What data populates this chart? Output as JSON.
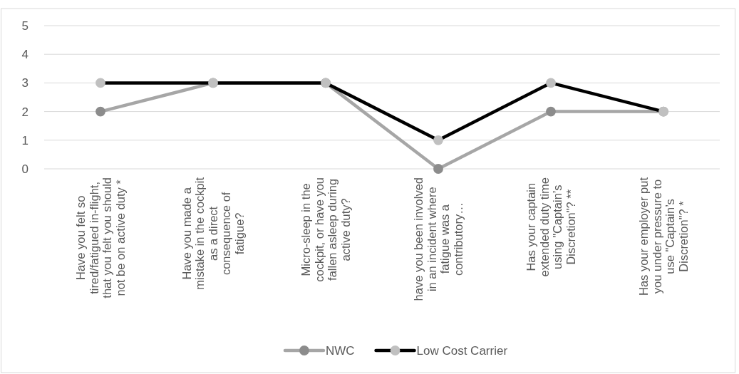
{
  "chart_data": {
    "type": "line",
    "categories": [
      "Have you felt so tired/fatigued in-flight, that you felt you should not be on active duty *",
      "Have you made a mistake in the cockpit as a direct consequence of fatigue?",
      "Micro-sleep in the cockpit, or have you fallen asleep during active duty?",
      "have you been involved in an incident where fatigue was a contributory…",
      "Has your captain extended duty time using \"Captain’s Discretion\"? **",
      "Has your employer put you under pressure to use \"Captain’s Discretion\"? *"
    ],
    "series": [
      {
        "name": "NWC",
        "color": "#a6a6a6",
        "colors": [
          "#8c8c8c",
          "#8c8c8c",
          "#8c8c8c",
          "#8c8c8c",
          "#8c8c8c",
          "#8c8c8c"
        ],
        "values": [
          2,
          3,
          3,
          0,
          2,
          2
        ]
      },
      {
        "name": "Low Cost Carrier",
        "color": "#000000",
        "colors": [
          "#c0c0c0",
          "#c0c0c0",
          "#c0c0c0",
          "#c0c0c0",
          "#c0c0c0",
          "#c0c0c0"
        ],
        "values": [
          3,
          3,
          3,
          1,
          3,
          2
        ]
      }
    ],
    "ylim": [
      0,
      5
    ],
    "yticks": [
      0,
      1,
      2,
      3,
      4,
      5
    ],
    "grid": "y",
    "legend": "bottom",
    "marker": "circle",
    "line_style": "solid"
  }
}
